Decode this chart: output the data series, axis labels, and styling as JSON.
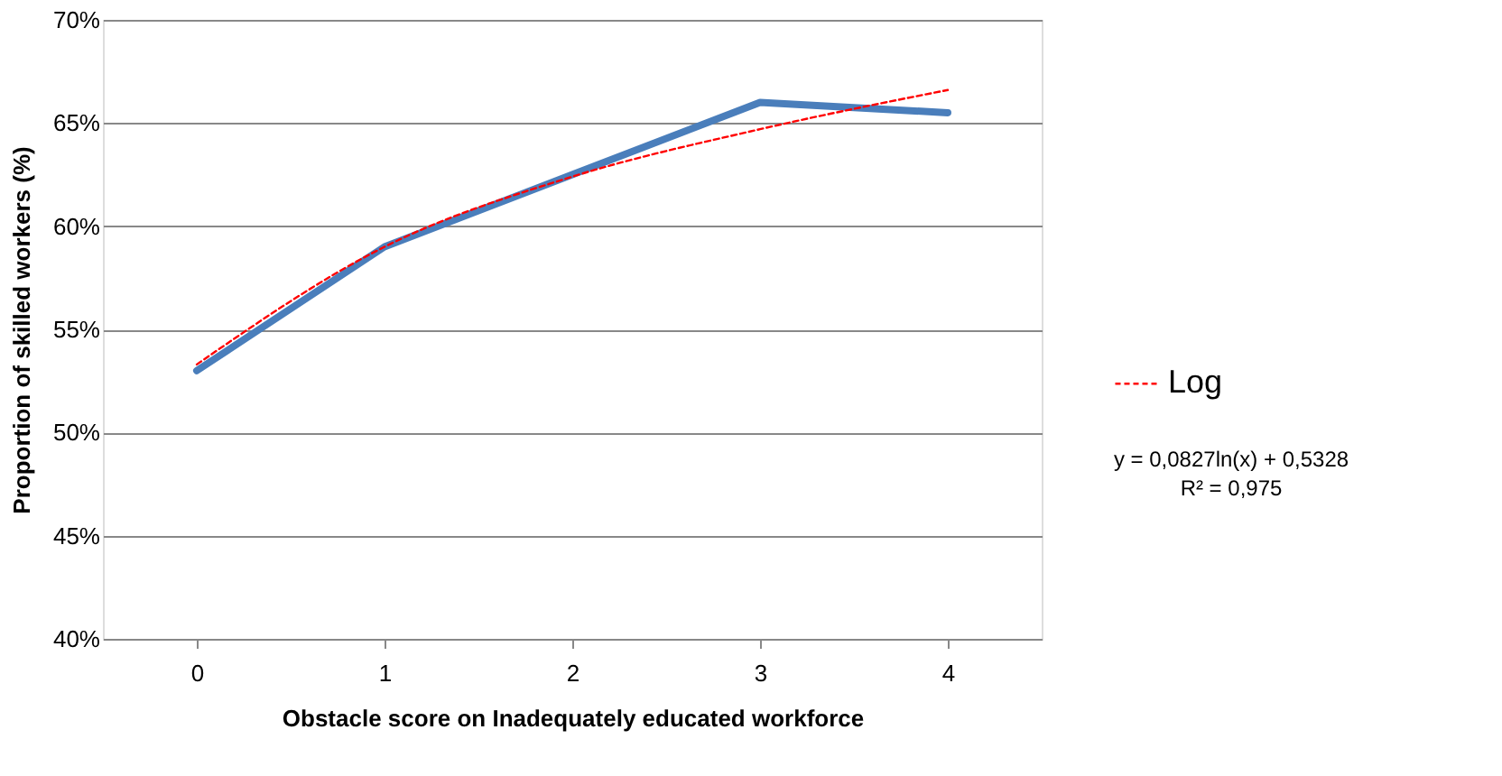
{
  "chart_data": {
    "type": "line",
    "xlabel": "Obstacle score on Inadequately educated workforce",
    "ylabel": "Proportion of skilled workers (%)",
    "categories": [
      "0",
      "1",
      "2",
      "3",
      "4"
    ],
    "series": [
      {
        "color": "#4a7ebb",
        "values": [
          53,
          59,
          62.5,
          66,
          65.5
        ]
      },
      {
        "name": "Log",
        "color": "#ff0000",
        "line_style": "dashed",
        "values": [
          53.3,
          59.0,
          62.4,
          64.7,
          66.6
        ]
      }
    ],
    "ylim": [
      40,
      70
    ],
    "yticks": [
      {
        "value": 40,
        "label": "40%"
      },
      {
        "value": 45,
        "label": "45%"
      },
      {
        "value": 50,
        "label": "50%"
      },
      {
        "value": 55,
        "label": "55%"
      },
      {
        "value": 60,
        "label": "60%"
      },
      {
        "value": 65,
        "label": "65%"
      },
      {
        "value": 70,
        "label": "70%"
      }
    ],
    "grid": "y",
    "legend": "right",
    "annotations": [
      "y = 0,0827ln(x) + 0,5328",
      "R² = 0,975"
    ]
  }
}
